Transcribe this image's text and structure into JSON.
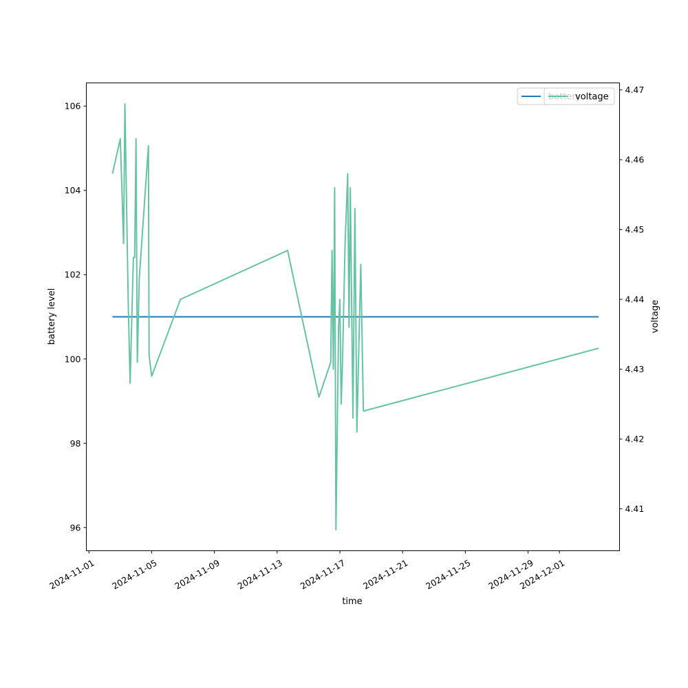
{
  "chart_data": {
    "type": "line",
    "xlabel": "time",
    "ylabel_left": "battery level",
    "ylabel_right": "voltage",
    "x_ticks": [
      "2024-11-01",
      "2024-11-05",
      "2024-11-09",
      "2024-11-13",
      "2024-11-17",
      "2024-11-21",
      "2024-11-25",
      "2024-11-29",
      "2024-12-01"
    ],
    "x_range": [
      "2024-10-31T20:00",
      "2024-12-04T20:00"
    ],
    "y_left_range": [
      95.45,
      106.55
    ],
    "y_left_ticks": [
      "96",
      "98",
      "100",
      "102",
      "104",
      "106"
    ],
    "y_right_range": [
      4.404,
      4.471
    ],
    "y_right_ticks": [
      "4.41",
      "4.42",
      "4.43",
      "4.44",
      "4.45",
      "4.46",
      "4.47"
    ],
    "grid": false,
    "legend_left_axis": {
      "position": "top-right",
      "labels": [
        "battery"
      ]
    },
    "legend_right_axis": {
      "position": "top-right",
      "labels": [
        "voltage"
      ]
    },
    "series": [
      {
        "name": "battery",
        "axis": "left",
        "color": "#1f77b4",
        "points": [
          [
            "2024-11-02T12:00",
            101.0
          ],
          [
            "2024-12-03T12:00",
            101.0
          ]
        ]
      },
      {
        "name": "voltage",
        "axis": "right",
        "color": "#66c2a5",
        "points": [
          [
            "2024-11-02T12:00",
            4.458
          ],
          [
            "2024-11-03T00:00",
            4.463
          ],
          [
            "2024-11-03T05:00",
            4.448
          ],
          [
            "2024-11-03T07:00",
            4.468
          ],
          [
            "2024-11-03T12:00",
            4.44
          ],
          [
            "2024-11-03T15:00",
            4.428
          ],
          [
            "2024-11-03T20:00",
            4.446
          ],
          [
            "2024-11-03T22:00",
            4.446
          ],
          [
            "2024-11-04T00:00",
            4.463
          ],
          [
            "2024-11-04T02:00",
            4.431
          ],
          [
            "2024-11-04T05:00",
            4.443
          ],
          [
            "2024-11-04T19:00",
            4.462
          ],
          [
            "2024-11-04T20:00",
            4.432
          ],
          [
            "2024-11-05T00:00",
            4.429
          ],
          [
            "2024-11-06T20:00",
            4.44
          ],
          [
            "2024-11-13T16:00",
            4.447
          ],
          [
            "2024-11-15T16:00",
            4.426
          ],
          [
            "2024-11-16T10:00",
            4.431
          ],
          [
            "2024-11-16T12:00",
            4.447
          ],
          [
            "2024-11-16T14:00",
            4.43
          ],
          [
            "2024-11-16T16:00",
            4.456
          ],
          [
            "2024-11-16T18:00",
            4.407
          ],
          [
            "2024-11-16T22:00",
            4.436
          ],
          [
            "2024-11-17T00:00",
            4.44
          ],
          [
            "2024-11-17T02:00",
            4.425
          ],
          [
            "2024-11-17T04:00",
            4.431
          ],
          [
            "2024-11-17T08:00",
            4.448
          ],
          [
            "2024-11-17T12:00",
            4.458
          ],
          [
            "2024-11-17T14:00",
            4.436
          ],
          [
            "2024-11-17T16:00",
            4.456
          ],
          [
            "2024-11-17T20:00",
            4.423
          ],
          [
            "2024-11-17T23:00",
            4.453
          ],
          [
            "2024-11-18T02:00",
            4.421
          ],
          [
            "2024-11-18T08:00",
            4.445
          ],
          [
            "2024-11-18T12:00",
            4.424
          ],
          [
            "2024-12-03T12:00",
            4.433
          ]
        ]
      }
    ]
  }
}
